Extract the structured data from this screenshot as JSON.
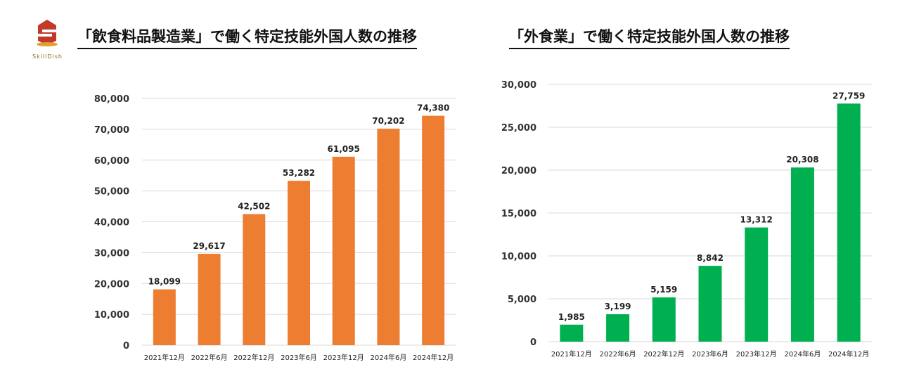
{
  "brand": {
    "name": "SkillDish",
    "accent": "#c0392b",
    "gold": "#e0a030"
  },
  "chart_data": [
    {
      "type": "bar",
      "title": "「飲食料品製造業」で働く特定技能外国人数の推移",
      "categories": [
        "2021年12月",
        "2022年6月",
        "2022年12月",
        "2023年6月",
        "2023年12月",
        "2024年6月",
        "2024年12月"
      ],
      "values": [
        18099,
        29617,
        42502,
        53282,
        61095,
        70202,
        74380
      ],
      "value_labels": [
        "18,099",
        "29,617",
        "42,502",
        "53,282",
        "61,095",
        "70,202",
        "74,380"
      ],
      "yticks": [
        "0",
        "10,000",
        "20,000",
        "30,000",
        "40,000",
        "50,000",
        "60,000",
        "70,000",
        "80,000"
      ],
      "ylim": [
        0,
        80000
      ],
      "color": "#ed7d31",
      "grid": true
    },
    {
      "type": "bar",
      "title": "「外食業」で働く特定技能外国人数の推移",
      "categories": [
        "2021年12月",
        "2022年6月",
        "2022年12月",
        "2023年6月",
        "2023年12月",
        "2024年6月",
        "2024年12月"
      ],
      "values": [
        1985,
        3199,
        5159,
        8842,
        13312,
        20308,
        27759
      ],
      "value_labels": [
        "1,985",
        "3,199",
        "5,159",
        "8,842",
        "13,312",
        "20,308",
        "27,759"
      ],
      "yticks": [
        "0",
        "5,000",
        "10,000",
        "15,000",
        "20,000",
        "25,000",
        "30,000"
      ],
      "ylim": [
        0,
        30000
      ],
      "color": "#00b050",
      "grid": true
    }
  ]
}
